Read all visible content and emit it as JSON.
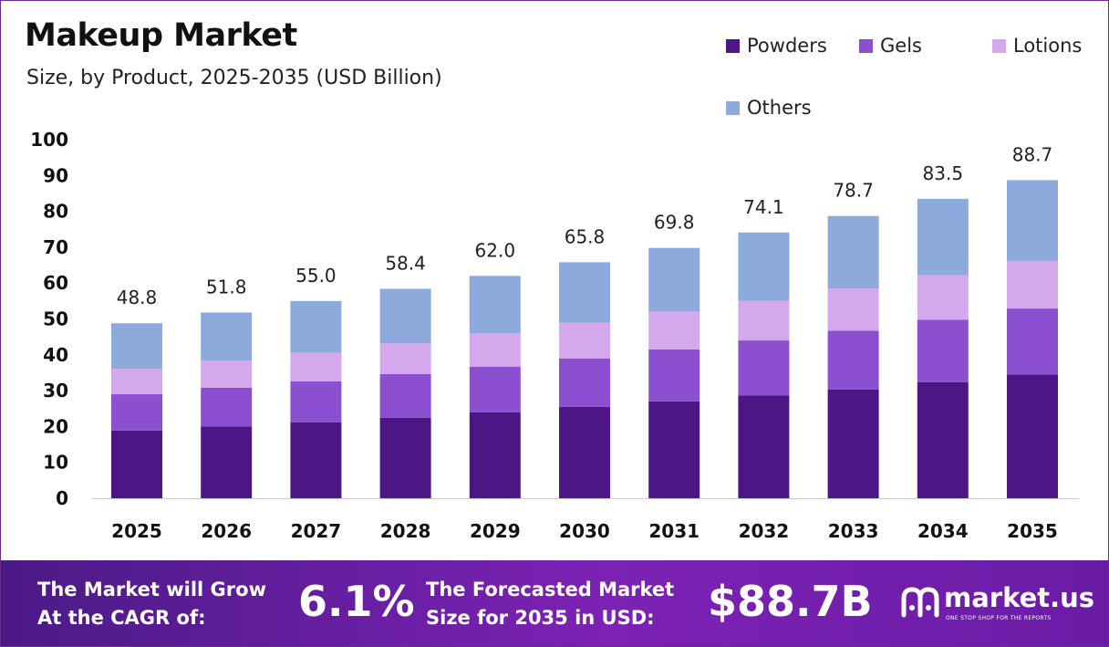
{
  "colors": {
    "powders": "#4e1685",
    "gels": "#8c4fd0",
    "lotions": "#d3a8ec",
    "others": "#8eaadc"
  },
  "chart_data": {
    "type": "bar",
    "stacked": true,
    "title": "Makeup Market",
    "subtitle": "Size, by Product, 2025-2035 (USD Billion)",
    "categories": [
      "2025",
      "2026",
      "2027",
      "2028",
      "2029",
      "2030",
      "2031",
      "2032",
      "2033",
      "2034",
      "2035"
    ],
    "series": [
      {
        "name": "Powders",
        "color_key": "powders",
        "values": [
          18.9,
          20.0,
          21.2,
          22.4,
          24.0,
          25.5,
          27.0,
          28.7,
          30.3,
          32.4,
          34.5
        ]
      },
      {
        "name": "Gels",
        "color_key": "gels",
        "values": [
          10.1,
          10.8,
          11.4,
          12.2,
          12.7,
          13.5,
          14.5,
          15.3,
          16.4,
          17.4,
          18.4
        ]
      },
      {
        "name": "Lotions",
        "color_key": "lotions",
        "values": [
          7.1,
          7.6,
          8.0,
          8.6,
          9.3,
          10.0,
          10.5,
          11.1,
          11.8,
          12.4,
          13.2
        ]
      },
      {
        "name": "Others",
        "color_key": "others",
        "values": [
          12.7,
          13.4,
          14.4,
          15.2,
          16.0,
          16.8,
          17.8,
          19.0,
          20.2,
          21.3,
          22.6
        ]
      }
    ],
    "totals": [
      "48.8",
      "51.8",
      "55.0",
      "58.4",
      "62.0",
      "65.8",
      "69.8",
      "74.1",
      "78.7",
      "83.5",
      "88.7"
    ],
    "yticks": [
      "0",
      "10",
      "20",
      "30",
      "40",
      "50",
      "60",
      "70",
      "80",
      "90",
      "100"
    ],
    "ylim": [
      0,
      100
    ],
    "legend": "top-right"
  },
  "footer": {
    "cagr_line1": "The Market will Grow",
    "cagr_line2": "At the CAGR of:",
    "cagr_value": "6.1%",
    "forecast_line1": "The Forecasted Market",
    "forecast_line2": "Size for 2035 in USD:",
    "forecast_value": "$88.7B",
    "brand_name": "market.us",
    "brand_tagline": "ONE STOP SHOP FOR THE REPORTS"
  }
}
